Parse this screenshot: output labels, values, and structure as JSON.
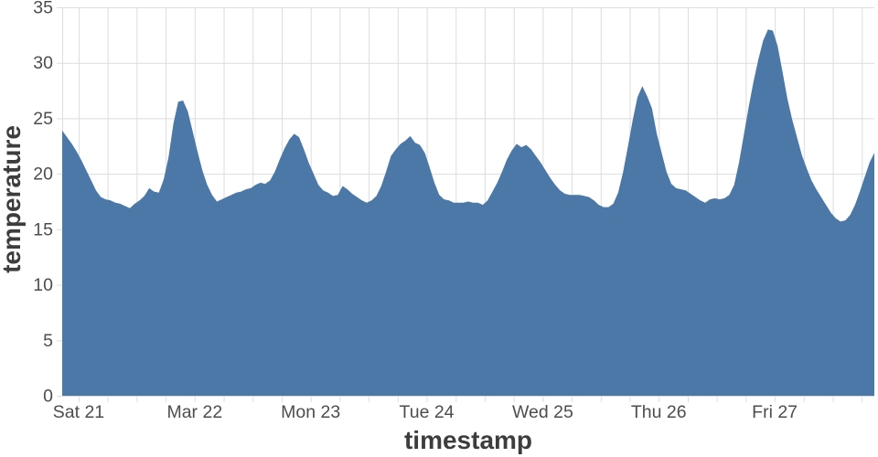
{
  "chart_data": {
    "type": "area",
    "title": "",
    "xlabel": "timestamp",
    "ylabel": "temperature",
    "series_name": "temperature",
    "area_color": "#4c78a8",
    "grid_color": "#dddddd",
    "label_color": "#4d4d4d",
    "title_color": "#3d3d3d",
    "background": "#ffffff",
    "grid": true,
    "legend": false,
    "ylim": [
      0,
      35
    ],
    "y_ticks": [
      0,
      5,
      10,
      15,
      20,
      25,
      30,
      35
    ],
    "x_tick_labels": [
      "Sat 21",
      "Mar 22",
      "Mon 23",
      "Tue 24",
      "Wed 25",
      "Thu 26",
      "Fri 27"
    ],
    "x_tick_hours": [
      3.4,
      27.4,
      51.4,
      75.4,
      99.4,
      123.4,
      147.4
    ],
    "grid_start_hour": 3.4,
    "grid_interval_hours": 6,
    "total_hours": 168,
    "hours_per_point": 1,
    "values": [
      23.9,
      23.3,
      22.7,
      22.0,
      21.2,
      20.3,
      19.4,
      18.5,
      17.9,
      17.7,
      17.6,
      17.4,
      17.3,
      17.1,
      16.9,
      17.3,
      17.6,
      18.0,
      18.7,
      18.4,
      18.3,
      19.5,
      21.5,
      24.5,
      26.5,
      26.6,
      25.6,
      23.8,
      22.0,
      20.3,
      19.0,
      18.1,
      17.5,
      17.7,
      17.9,
      18.1,
      18.3,
      18.4,
      18.6,
      18.7,
      19.0,
      19.2,
      19.1,
      19.4,
      20.2,
      21.3,
      22.3,
      23.1,
      23.6,
      23.3,
      22.2,
      21.0,
      20.0,
      19.0,
      18.5,
      18.3,
      18.0,
      18.1,
      18.9,
      18.6,
      18.2,
      17.9,
      17.6,
      17.4,
      17.6,
      18.0,
      18.9,
      20.2,
      21.6,
      22.2,
      22.7,
      23.0,
      23.4,
      22.8,
      22.6,
      21.9,
      20.6,
      19.2,
      18.1,
      17.7,
      17.6,
      17.4,
      17.4,
      17.4,
      17.5,
      17.4,
      17.4,
      17.2,
      17.6,
      18.4,
      19.2,
      20.2,
      21.3,
      22.1,
      22.7,
      22.4,
      22.6,
      22.2,
      21.6,
      21.0,
      20.3,
      19.6,
      19.0,
      18.5,
      18.2,
      18.1,
      18.1,
      18.1,
      18.0,
      17.9,
      17.6,
      17.2,
      17.0,
      17.0,
      17.3,
      18.3,
      20.1,
      22.4,
      24.8,
      26.9,
      27.9,
      27.0,
      25.9,
      23.6,
      21.9,
      20.2,
      19.1,
      18.7,
      18.6,
      18.5,
      18.2,
      17.9,
      17.6,
      17.4,
      17.7,
      17.8,
      17.7,
      17.8,
      18.1,
      19.0,
      21.0,
      23.5,
      26.0,
      28.3,
      30.3,
      32.0,
      33.0,
      32.9,
      31.5,
      29.2,
      26.8,
      24.9,
      23.3,
      21.7,
      20.5,
      19.4,
      18.6,
      17.9,
      17.2,
      16.5,
      16.0,
      15.7,
      15.8,
      16.3,
      17.2,
      18.4,
      19.7,
      21.0,
      21.9
    ]
  }
}
